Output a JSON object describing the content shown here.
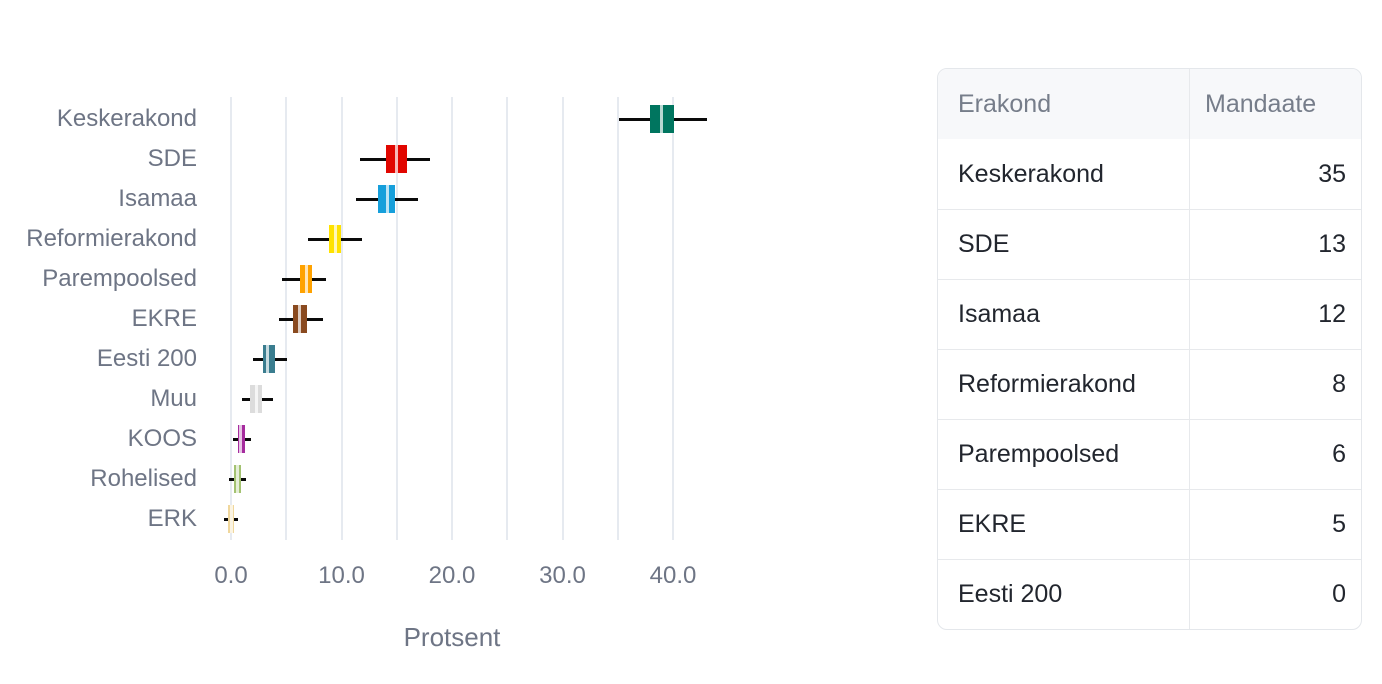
{
  "chart_data": {
    "type": "boxplot",
    "orientation": "horizontal",
    "xlabel": "Protsent",
    "x_ticks": [
      0,
      10,
      20,
      30,
      40
    ],
    "x_tick_labels": [
      "0.0",
      "10.0",
      "20.0",
      "30.0",
      "40.0"
    ],
    "grid": true,
    "gridline_step": 5,
    "xlim": [
      -1.5,
      44.5
    ],
    "categories": [
      "Keskerakond",
      "SDE",
      "Isamaa",
      "Reformierakond",
      "Parempoolsed",
      "EKRE",
      "Eesti 200",
      "Muu",
      "KOOS",
      "Rohelised",
      "ERK"
    ],
    "series": [
      {
        "name": "Keskerakond",
        "color": "#00755f",
        "whisker_low": 35.1,
        "q1": 37.9,
        "median": 39.0,
        "q3": 40.1,
        "whisker_high": 43.1
      },
      {
        "name": "SDE",
        "color": "#e10600",
        "whisker_low": 11.7,
        "q1": 14.0,
        "median": 15.0,
        "q3": 15.9,
        "whisker_high": 18.0
      },
      {
        "name": "Isamaa",
        "color": "#169fdb",
        "whisker_low": 11.3,
        "q1": 13.3,
        "median": 14.2,
        "q3": 14.8,
        "whisker_high": 16.9
      },
      {
        "name": "Reformierakond",
        "color": "#ffe200",
        "whisker_low": 7.0,
        "q1": 8.9,
        "median": 9.5,
        "q3": 10.0,
        "whisker_high": 11.9
      },
      {
        "name": "Parempoolsed",
        "color": "#ffa200",
        "whisker_low": 4.6,
        "q1": 6.2,
        "median": 6.8,
        "q3": 7.3,
        "whisker_high": 8.6
      },
      {
        "name": "EKRE",
        "color": "#8a4a1f",
        "whisker_low": 4.3,
        "q1": 5.6,
        "median": 6.2,
        "q3": 6.9,
        "whisker_high": 8.3
      },
      {
        "name": "Eesti 200",
        "color": "#3a7d8f",
        "whisker_low": 2.0,
        "q1": 2.9,
        "median": 3.3,
        "q3": 4.0,
        "whisker_high": 5.1
      },
      {
        "name": "Muu",
        "color": "#dcdcdc",
        "whisker_low": 1.0,
        "q1": 1.7,
        "median": 2.3,
        "q3": 2.8,
        "whisker_high": 3.8
      },
      {
        "name": "KOOS",
        "color": "#a62c9e",
        "whisker_low": 0.2,
        "q1": 0.6,
        "median": 0.9,
        "q3": 1.3,
        "whisker_high": 1.8
      },
      {
        "name": "Rohelised",
        "color": "#a3c271",
        "whisker_low": -0.2,
        "q1": 0.3,
        "median": 0.6,
        "q3": 0.9,
        "whisker_high": 1.4
      },
      {
        "name": "ERK",
        "color": "#f0d79c",
        "whisker_low": -0.6,
        "q1": -0.25,
        "median": 0.05,
        "q3": 0.3,
        "whisker_high": 0.65
      }
    ],
    "style": {
      "whisker_color": "#0a0a0a",
      "gridline_color": "#e6eaf0",
      "label_color": "#6e7585"
    }
  },
  "table": {
    "headers": [
      "Erakond",
      "Mandaate"
    ],
    "rows": [
      {
        "party": "Keskerakond",
        "mandates": "35"
      },
      {
        "party": "SDE",
        "mandates": "13"
      },
      {
        "party": "Isamaa",
        "mandates": "12"
      },
      {
        "party": "Reformierakond",
        "mandates": "8"
      },
      {
        "party": "Parempoolsed",
        "mandates": "6"
      },
      {
        "party": "EKRE",
        "mandates": "5"
      },
      {
        "party": "Eesti 200",
        "mandates": "0"
      }
    ]
  }
}
